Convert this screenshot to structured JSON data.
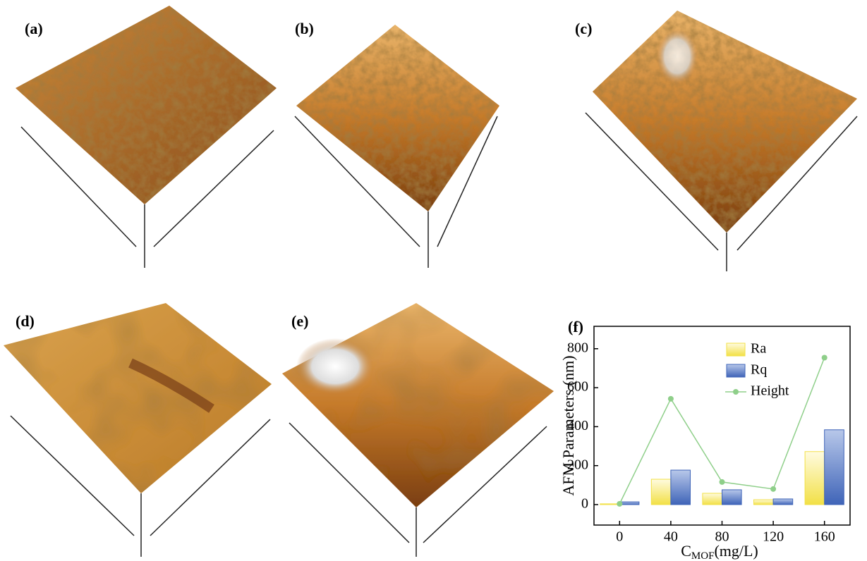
{
  "panels": [
    "(a)",
    "(b)",
    "(c)",
    "(d)",
    "(e)"
  ],
  "chart_data": {
    "type": "bar",
    "panel_label": "(f)",
    "y_label": "AFM Parameters (nm)",
    "x_label": "C",
    "x_label_sub": "MOF",
    "x_label_rest": "(mg/L)",
    "categories": [
      "0",
      "40",
      "80",
      "120",
      "160"
    ],
    "series": [
      {
        "name": "Ra",
        "type": "bar",
        "color": "#f2e046",
        "values": [
          4,
          130,
          58,
          25,
          272
        ]
      },
      {
        "name": "Rq",
        "type": "bar",
        "color": "#3f64b8",
        "values": [
          14,
          177,
          76,
          29,
          384
        ]
      },
      {
        "name": "Height",
        "type": "line",
        "color": "#8fcf8a",
        "values": [
          4,
          543,
          116,
          80,
          754
        ]
      }
    ],
    "ylim": [
      -105,
      915
    ],
    "yticks": [
      0,
      200,
      400,
      600,
      800
    ],
    "legend": "upper right",
    "grid": false
  }
}
